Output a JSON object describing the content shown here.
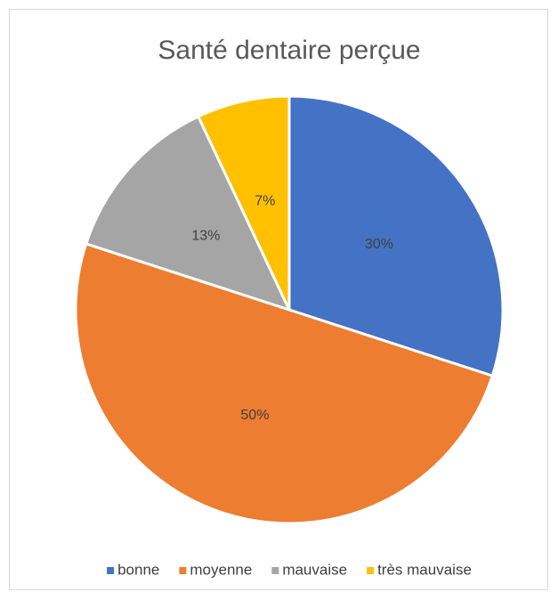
{
  "chart_data": {
    "type": "pie",
    "title": "Santé dentaire perçue",
    "categories": [
      "bonne",
      "moyenne",
      "mauvaise",
      "très mauvaise"
    ],
    "values": [
      30,
      50,
      13,
      7
    ],
    "value_labels": [
      "30%",
      "50%",
      "13%",
      "7%"
    ],
    "colors": [
      "#4472c4",
      "#ed7d31",
      "#a5a5a5",
      "#ffc000"
    ],
    "legend": "bottom"
  }
}
